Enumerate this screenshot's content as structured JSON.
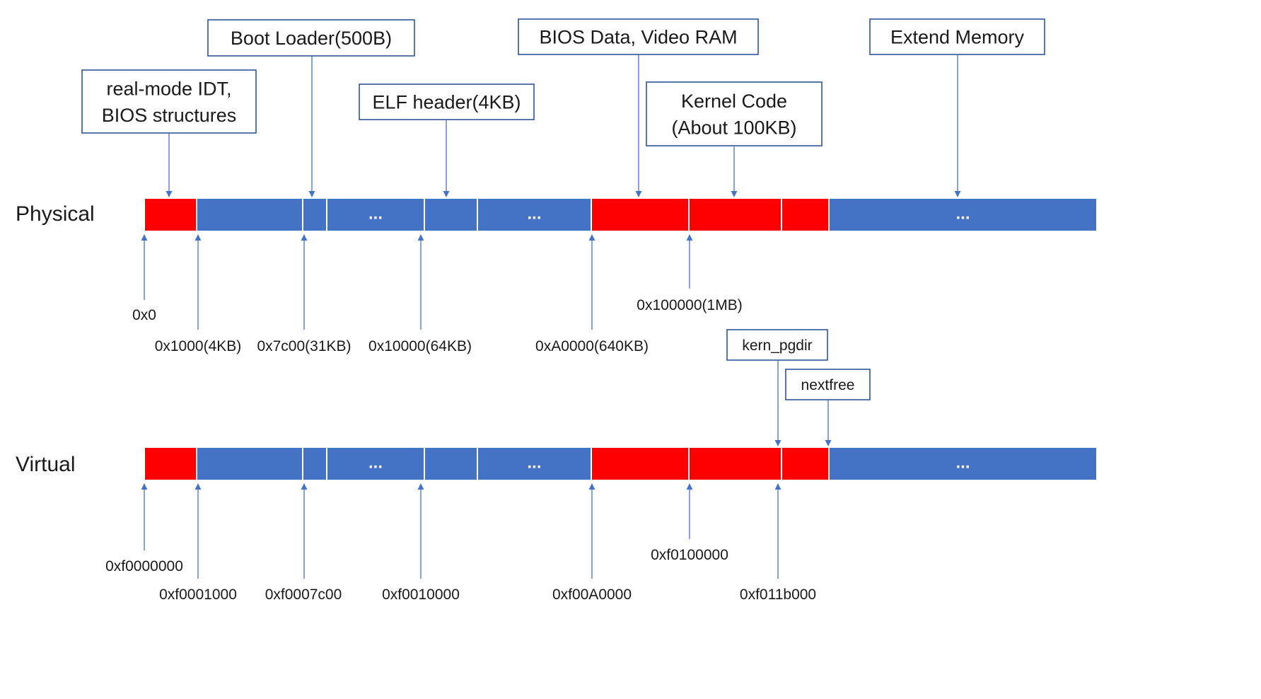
{
  "colors": {
    "reserved": "#FF0000",
    "free": "#4472C4",
    "box_border": "#2F5597",
    "arrow": "#4472C4",
    "text": "#1a1a1a"
  },
  "rows": [
    {
      "label": "Physical",
      "segments": [
        {
          "color": "reserved",
          "text": ""
        },
        {
          "color": "free",
          "text": ""
        },
        {
          "color": "free",
          "text": ""
        },
        {
          "color": "free",
          "text": "..."
        },
        {
          "color": "free",
          "text": ""
        },
        {
          "color": "free",
          "text": "..."
        },
        {
          "color": "reserved",
          "text": ""
        },
        {
          "color": "reserved",
          "text": ""
        },
        {
          "color": "reserved",
          "text": ""
        },
        {
          "color": "free",
          "text": "..."
        }
      ],
      "addresses": [
        "0x0",
        "0x1000(4KB)",
        "0x7c00(31KB)",
        "0x10000(64KB)",
        "0xA0000(640KB)",
        "0x100000(1MB)"
      ],
      "callouts": [
        {
          "lines": [
            "real-mode IDT,",
            "BIOS structures"
          ]
        },
        {
          "lines": [
            "Boot Loader(500B)"
          ]
        },
        {
          "lines": [
            "ELF header(4KB)"
          ]
        },
        {
          "lines": [
            "BIOS Data, Video RAM"
          ]
        },
        {
          "lines": [
            "Kernel Code",
            "(About 100KB)"
          ]
        },
        {
          "lines": [
            "Extend Memory"
          ]
        }
      ]
    },
    {
      "label": "Virtual",
      "segments": [
        {
          "color": "reserved",
          "text": ""
        },
        {
          "color": "free",
          "text": ""
        },
        {
          "color": "free",
          "text": ""
        },
        {
          "color": "free",
          "text": "..."
        },
        {
          "color": "free",
          "text": ""
        },
        {
          "color": "free",
          "text": "..."
        },
        {
          "color": "reserved",
          "text": ""
        },
        {
          "color": "reserved",
          "text": ""
        },
        {
          "color": "reserved",
          "text": ""
        },
        {
          "color": "free",
          "text": "..."
        }
      ],
      "addresses": [
        "0xf0000000",
        "0xf0001000",
        "0xf0007c00",
        "0xf0010000",
        "0xf00A0000",
        "0xf0100000",
        "0xf011b000"
      ],
      "callouts": [
        {
          "lines": [
            "kern_pgdir"
          ]
        },
        {
          "lines": [
            "nextfree"
          ]
        }
      ]
    }
  ]
}
